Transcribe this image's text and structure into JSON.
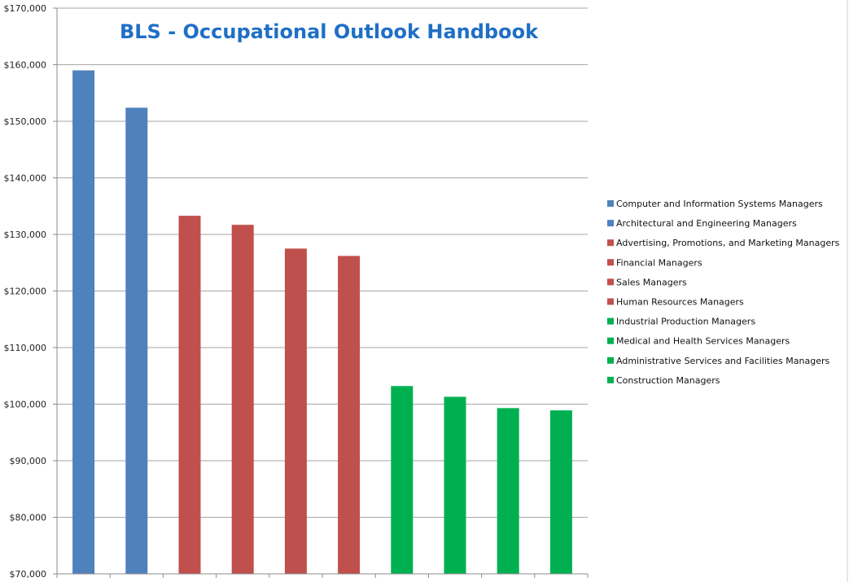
{
  "colors": {
    "blue": "#4f81bd",
    "red": "#c0504d",
    "green": "#00b050",
    "title": "#1f6fc5",
    "grid": "#a6a6a6",
    "axis": "#8c8c8c"
  },
  "chart_data": {
    "type": "bar",
    "title": "BLS - Occupational Outlook Handbook",
    "xlabel": "",
    "ylabel": "",
    "ylim": [
      70000,
      170000
    ],
    "yticks": [
      70000,
      80000,
      90000,
      100000,
      110000,
      120000,
      130000,
      140000,
      150000,
      160000,
      170000
    ],
    "ytick_labels": [
      "$70,000",
      "$80,000",
      "$90,000",
      "$100,000",
      "$110,000",
      "$120,000",
      "$130,000",
      "$140,000",
      "$150,000",
      "$160,000",
      "$170,000"
    ],
    "grid": true,
    "legend_position": "right",
    "series": [
      {
        "name": "Computer and Information  Systems Managers",
        "value": 159000,
        "color": "#4f81bd"
      },
      {
        "name": "Architectural and Engineering Managers",
        "value": 152400,
        "color": "#4f81bd"
      },
      {
        "name": "Advertising, Promotions, and Marketing Managers",
        "value": 133300,
        "color": "#c0504d"
      },
      {
        "name": "Financial Managers",
        "value": 131700,
        "color": "#c0504d"
      },
      {
        "name": "Sales Managers",
        "value": 127500,
        "color": "#c0504d"
      },
      {
        "name": "Human Resources Managers",
        "value": 126200,
        "color": "#c0504d"
      },
      {
        "name": "Industrial Production Managers",
        "value": 103200,
        "color": "#00b050"
      },
      {
        "name": "Medical and  Health Services Managers",
        "value": 101300,
        "color": "#00b050"
      },
      {
        "name": "Administrative Services and  Facilities Managers",
        "value": 99300,
        "color": "#00b050"
      },
      {
        "name": "Construction Managers",
        "value": 98900,
        "color": "#00b050"
      }
    ]
  }
}
